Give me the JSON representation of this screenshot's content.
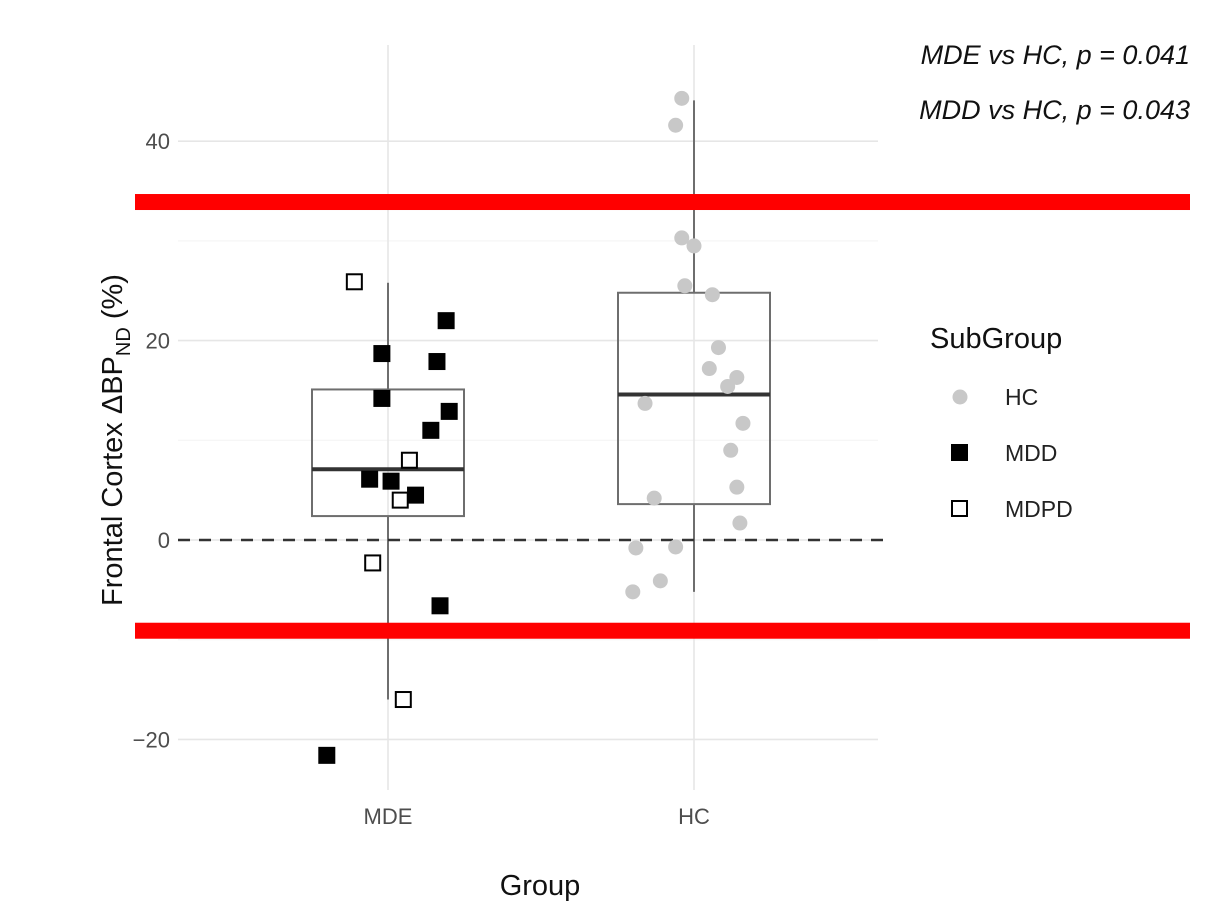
{
  "chart_data": {
    "type": "boxplot",
    "xlabel": "Group",
    "ylabel": {
      "main": "Frontal Cortex ΔBP",
      "subscript": "ND",
      "suffix": " (%)"
    },
    "categories": [
      "MDE",
      "HC"
    ],
    "ylim": [
      -25,
      49
    ],
    "yticks": [
      -20,
      0,
      20,
      40
    ],
    "ytick_labels": [
      "−20",
      "0",
      "20",
      "40"
    ],
    "reference_line": 0,
    "highlight_lines": [
      33.9,
      -9.1
    ],
    "highlight_color": "#ff0000",
    "annotations": [
      "MDE vs HC, p = 0.041",
      "MDD vs HC, p = 0.043"
    ],
    "legend": {
      "title": "SubGroup",
      "placement": "right",
      "entries": [
        {
          "label": "HC",
          "shape": "circle",
          "color": "#c8c8c8"
        },
        {
          "label": "MDD",
          "shape": "filled-square",
          "color": "#000000"
        },
        {
          "label": "MDPD",
          "shape": "open-square",
          "color": "#000000"
        }
      ]
    },
    "boxes": [
      {
        "category": "MDE",
        "whisker_low": -16.0,
        "q1": 2.4,
        "median": 7.1,
        "q3": 15.1,
        "whisker_high": 25.8
      },
      {
        "category": "HC",
        "whisker_low": -5.2,
        "q1": 3.6,
        "median": 14.6,
        "q3": 24.8,
        "whisker_high": 44.1
      }
    ],
    "points": [
      {
        "category": "MDE",
        "subgroup": "MDPD",
        "y": 25.9,
        "jitter": -0.11
      },
      {
        "category": "MDE",
        "subgroup": "MDPD",
        "y": 8.0,
        "jitter": 0.07
      },
      {
        "category": "MDE",
        "subgroup": "MDPD",
        "y": 4.0,
        "jitter": 0.04
      },
      {
        "category": "MDE",
        "subgroup": "MDPD",
        "y": -2.3,
        "jitter": -0.05
      },
      {
        "category": "MDE",
        "subgroup": "MDPD",
        "y": -16.0,
        "jitter": 0.05
      },
      {
        "category": "MDE",
        "subgroup": "MDD",
        "y": 22.0,
        "jitter": 0.19
      },
      {
        "category": "MDE",
        "subgroup": "MDD",
        "y": 18.7,
        "jitter": -0.02
      },
      {
        "category": "MDE",
        "subgroup": "MDD",
        "y": 17.9,
        "jitter": 0.16
      },
      {
        "category": "MDE",
        "subgroup": "MDD",
        "y": 14.2,
        "jitter": -0.02
      },
      {
        "category": "MDE",
        "subgroup": "MDD",
        "y": 12.9,
        "jitter": 0.2
      },
      {
        "category": "MDE",
        "subgroup": "MDD",
        "y": 11.0,
        "jitter": 0.14
      },
      {
        "category": "MDE",
        "subgroup": "MDD",
        "y": 6.1,
        "jitter": -0.06
      },
      {
        "category": "MDE",
        "subgroup": "MDD",
        "y": 5.9,
        "jitter": 0.01
      },
      {
        "category": "MDE",
        "subgroup": "MDD",
        "y": 4.5,
        "jitter": 0.09
      },
      {
        "category": "MDE",
        "subgroup": "MDD",
        "y": -6.6,
        "jitter": 0.17
      },
      {
        "category": "MDE",
        "subgroup": "MDD",
        "y": -21.6,
        "jitter": -0.2
      },
      {
        "category": "HC",
        "subgroup": "HC",
        "y": 44.3,
        "jitter": -0.04
      },
      {
        "category": "HC",
        "subgroup": "HC",
        "y": 41.6,
        "jitter": -0.06
      },
      {
        "category": "HC",
        "subgroup": "HC",
        "y": 30.3,
        "jitter": -0.04
      },
      {
        "category": "HC",
        "subgroup": "HC",
        "y": 29.5,
        "jitter": 0.0
      },
      {
        "category": "HC",
        "subgroup": "HC",
        "y": 25.5,
        "jitter": -0.03
      },
      {
        "category": "HC",
        "subgroup": "HC",
        "y": 24.6,
        "jitter": 0.06
      },
      {
        "category": "HC",
        "subgroup": "HC",
        "y": 19.3,
        "jitter": 0.08
      },
      {
        "category": "HC",
        "subgroup": "HC",
        "y": 17.2,
        "jitter": 0.05
      },
      {
        "category": "HC",
        "subgroup": "HC",
        "y": 16.3,
        "jitter": 0.14
      },
      {
        "category": "HC",
        "subgroup": "HC",
        "y": 15.4,
        "jitter": 0.11
      },
      {
        "category": "HC",
        "subgroup": "HC",
        "y": 13.7,
        "jitter": -0.16
      },
      {
        "category": "HC",
        "subgroup": "HC",
        "y": 11.7,
        "jitter": 0.16
      },
      {
        "category": "HC",
        "subgroup": "HC",
        "y": 9.0,
        "jitter": 0.12
      },
      {
        "category": "HC",
        "subgroup": "HC",
        "y": 5.3,
        "jitter": 0.14
      },
      {
        "category": "HC",
        "subgroup": "HC",
        "y": 4.2,
        "jitter": -0.13
      },
      {
        "category": "HC",
        "subgroup": "HC",
        "y": 1.7,
        "jitter": 0.15
      },
      {
        "category": "HC",
        "subgroup": "HC",
        "y": -0.8,
        "jitter": -0.19
      },
      {
        "category": "HC",
        "subgroup": "HC",
        "y": -0.7,
        "jitter": -0.06
      },
      {
        "category": "HC",
        "subgroup": "HC",
        "y": -4.1,
        "jitter": -0.11
      },
      {
        "category": "HC",
        "subgroup": "HC",
        "y": -5.2,
        "jitter": -0.2
      }
    ]
  }
}
